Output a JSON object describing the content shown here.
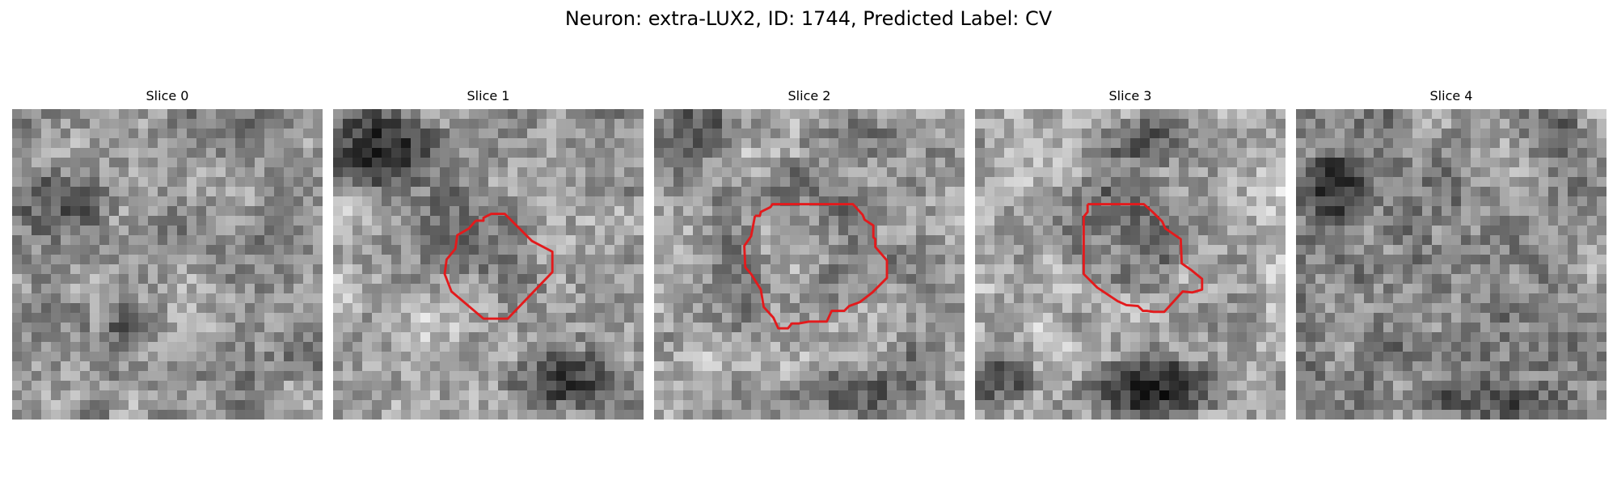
{
  "figure": {
    "title": "Neuron: extra-LUX2, ID: 1744, Predicted Label: CV"
  },
  "colors": {
    "contour": "#e31a1c",
    "background": "#ffffff",
    "colormap": "gray"
  },
  "slices": [
    {
      "title": "Slice 0",
      "has_contour": false
    },
    {
      "title": "Slice 1",
      "has_contour": true
    },
    {
      "title": "Slice 2",
      "has_contour": true
    },
    {
      "title": "Slice 3",
      "has_contour": true
    },
    {
      "title": "Slice 4",
      "has_contour": false
    }
  ]
}
